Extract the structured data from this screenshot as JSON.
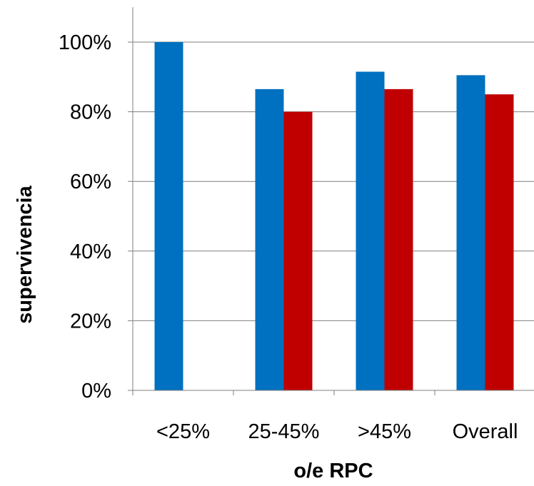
{
  "chart_data": {
    "type": "bar",
    "categories": [
      "<25%",
      "25-45%",
      ">45%",
      "Overall"
    ],
    "series": [
      {
        "color": "#0070C0",
        "values": [
          1.0,
          0.865,
          0.915,
          0.905
        ]
      },
      {
        "color": "#C00000",
        "values": [
          null,
          0.8,
          0.865,
          0.85
        ]
      }
    ],
    "xlabel": "o/e RPC",
    "ylabel": "supervivencia",
    "ylim": [
      0,
      1
    ],
    "yticks": [
      0,
      0.2,
      0.4,
      0.6,
      0.8,
      1.0
    ],
    "ytick_labels": [
      "0%",
      "20%",
      "40%",
      "60%",
      "80%",
      "100%"
    ],
    "grid": true,
    "gridline_color": "#7f7f7f",
    "legend": "none"
  }
}
